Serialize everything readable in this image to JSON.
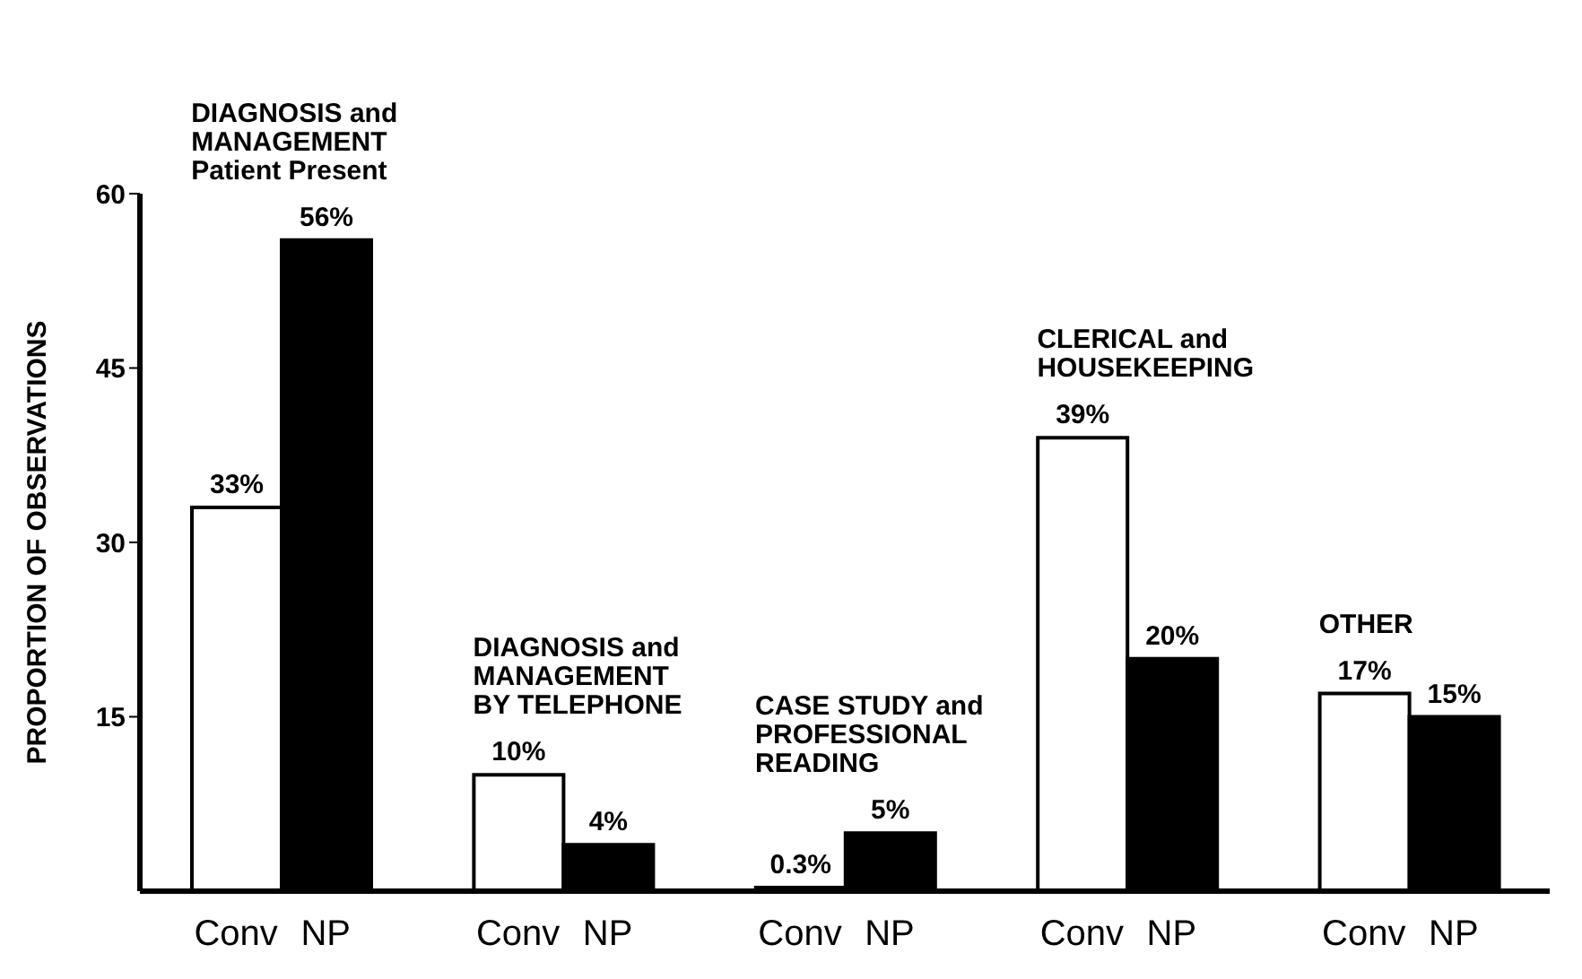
{
  "chart_data": {
    "type": "bar",
    "ylabel": "PROPORTION OF OBSERVATIONS",
    "categories": [
      "DIAGNOSIS and\nMANAGEMENT\nPatient Present",
      "DIAGNOSIS and\nMANAGEMENT\nBY TELEPHONE",
      "CASE STUDY and\nPROFESSIONAL\nREADING",
      "CLERICAL and\nHOUSEKEEPING",
      "OTHER"
    ],
    "series": [
      {
        "name": "Conv",
        "color": "#ffffff",
        "values": [
          33,
          10,
          0.3,
          39,
          17
        ],
        "value_labels": [
          "33%",
          "10%",
          "0.3%",
          "39%",
          "17%"
        ]
      },
      {
        "name": "NP",
        "color": "#000000",
        "values": [
          56,
          4,
          5,
          20,
          15
        ],
        "value_labels": [
          "56%",
          "4%",
          "5%",
          "20%",
          "15%"
        ]
      }
    ],
    "ylim": [
      0,
      60
    ],
    "yticks": [
      15,
      30,
      45,
      60
    ],
    "grid": false,
    "legend": false
  }
}
